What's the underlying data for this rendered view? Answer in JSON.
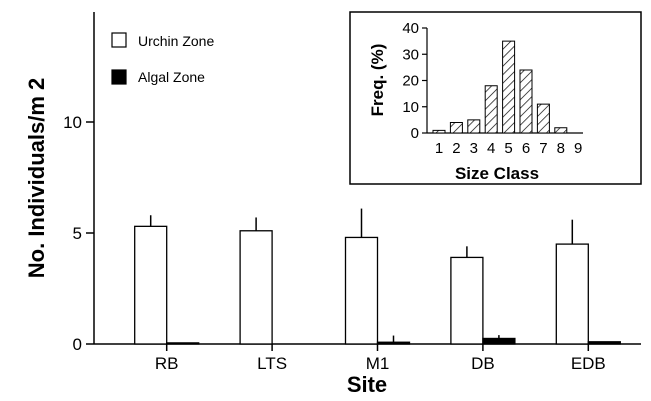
{
  "chart_data": [
    {
      "type": "bar",
      "categories": [
        "RB",
        "LTS",
        "M1",
        "DB",
        "EDB"
      ],
      "series": [
        {
          "name": "Urchin Zone",
          "values": [
            5.3,
            5.1,
            4.8,
            3.9,
            4.5
          ],
          "errors": [
            0.5,
            0.6,
            1.3,
            0.5,
            1.1
          ],
          "color": "#ffffff"
        },
        {
          "name": "Algal Zone",
          "values": [
            0.05,
            0.0,
            0.08,
            0.25,
            0.1
          ],
          "errors": [
            0.0,
            0.0,
            0.3,
            0.15,
            0.0
          ],
          "color": "#000000"
        }
      ],
      "xlabel": "Site",
      "ylabel": "No. Individuals/m 2",
      "ylim": [
        0,
        15
      ],
      "yticks": [
        0,
        5,
        10
      ],
      "legend": "top-left",
      "grid": false
    },
    {
      "type": "bar",
      "categories": [
        "1",
        "2",
        "3",
        "4",
        "5",
        "6",
        "7",
        "8",
        "9"
      ],
      "values": [
        1,
        4,
        5,
        18,
        35,
        24,
        11,
        2,
        0
      ],
      "xlabel": "Size  Class",
      "ylabel": "Freq. (%)",
      "ylim": [
        0,
        40
      ],
      "yticks": [
        0,
        10,
        20,
        30,
        40
      ],
      "pattern": "hatched",
      "position": "top-right inset"
    }
  ]
}
